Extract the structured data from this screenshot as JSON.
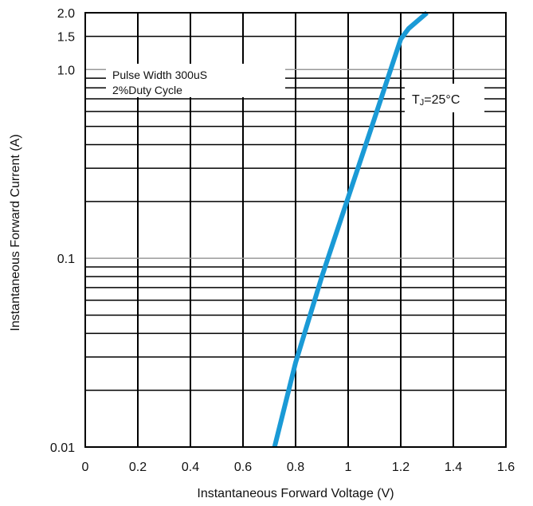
{
  "chart_data": {
    "type": "line",
    "xlabel": "Instantaneous Forward Voltage (V)",
    "ylabel": "Instantaneous Forward Current (A)",
    "xlim": [
      0,
      1.6
    ],
    "ylim": [
      0.01,
      2.0
    ],
    "y_scale": "log",
    "x_ticks": [
      0,
      0.2,
      0.4,
      0.6,
      0.8,
      1.0,
      1.2,
      1.4,
      1.6
    ],
    "x_tick_labels": [
      "0",
      "0.2",
      "0.4",
      "0.6",
      "0.8",
      "1",
      "1.2",
      "1.4",
      "1.6"
    ],
    "y_ticks": [
      0.01,
      0.1,
      1.0,
      1.5,
      2.0
    ],
    "y_tick_labels": [
      "0.01",
      "0.1",
      "1.0",
      "1.5",
      "2.0"
    ],
    "grid": true,
    "annotations": {
      "pulse_line1": "Pulse Width 300uS",
      "pulse_line2": "2%Duty Cycle",
      "tj_prefix": "T",
      "tj_sub": "J",
      "tj_suffix": "=25°C"
    },
    "series": [
      {
        "color": "#1a9ad6",
        "x": [
          0.72,
          0.8,
          0.9,
          1.0,
          1.1,
          1.2,
          1.23,
          1.3
        ],
        "y": [
          0.01,
          0.028,
          0.08,
          0.21,
          0.55,
          1.45,
          1.65,
          2.0
        ]
      }
    ],
    "colors": {
      "grid": "#000000",
      "grid_light": "#999999",
      "curve": "#1a9ad6"
    }
  }
}
